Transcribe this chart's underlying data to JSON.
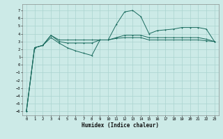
{
  "xlabel": "Humidex (Indice chaleur)",
  "bg_color": "#cceae7",
  "grid_color": "#aad4d0",
  "line_color": "#1a6b5e",
  "xlim": [
    -0.5,
    23.5
  ],
  "ylim": [
    -6.5,
    7.8
  ],
  "xticks": [
    0,
    1,
    2,
    3,
    4,
    5,
    6,
    7,
    8,
    9,
    10,
    11,
    12,
    13,
    14,
    15,
    16,
    17,
    18,
    19,
    20,
    21,
    22,
    23
  ],
  "yticks": [
    -6,
    -5,
    -4,
    -3,
    -2,
    -1,
    0,
    1,
    2,
    3,
    4,
    5,
    6,
    7
  ],
  "line1_x": [
    0,
    1,
    2,
    3,
    4,
    5,
    6,
    7,
    8,
    9,
    10,
    11,
    12,
    13,
    14,
    15,
    16,
    17,
    18,
    19,
    20,
    21,
    22,
    23
  ],
  "line1_y": [
    -6.0,
    2.2,
    2.5,
    3.5,
    2.8,
    2.2,
    1.8,
    1.5,
    1.2,
    3.2,
    3.2,
    5.2,
    6.8,
    7.0,
    6.2,
    4.0,
    4.4,
    4.5,
    4.6,
    4.8,
    4.8,
    4.8,
    4.6,
    3.0
  ],
  "line2_x": [
    0,
    1,
    2,
    3,
    4,
    5,
    6,
    7,
    8,
    9,
    10,
    11,
    12,
    13,
    14,
    15,
    16,
    17,
    18,
    19,
    20,
    21,
    22,
    23
  ],
  "line2_y": [
    -6.0,
    2.2,
    2.5,
    3.8,
    3.2,
    3.2,
    3.2,
    3.2,
    3.2,
    3.2,
    3.2,
    3.4,
    3.5,
    3.5,
    3.5,
    3.2,
    3.2,
    3.2,
    3.2,
    3.2,
    3.2,
    3.2,
    3.1,
    3.0
  ],
  "line3_x": [
    0,
    1,
    2,
    3,
    4,
    5,
    6,
    7,
    8,
    9,
    10,
    11,
    12,
    13,
    14,
    15,
    16,
    17,
    18,
    19,
    20,
    21,
    22,
    23
  ],
  "line3_y": [
    -6.0,
    2.2,
    2.5,
    3.8,
    3.0,
    2.8,
    2.8,
    2.8,
    2.8,
    3.2,
    3.2,
    3.5,
    3.8,
    3.8,
    3.8,
    3.5,
    3.5,
    3.5,
    3.5,
    3.5,
    3.5,
    3.5,
    3.3,
    3.0
  ]
}
